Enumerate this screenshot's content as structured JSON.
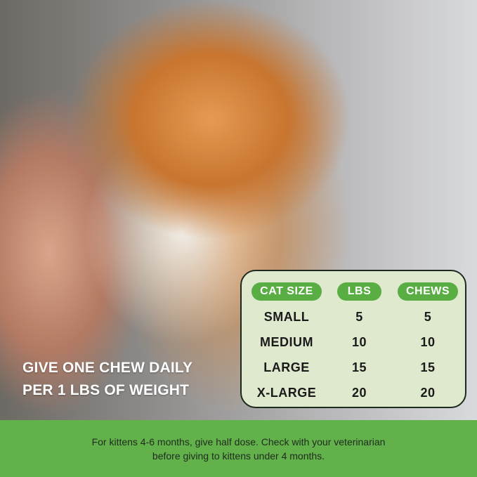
{
  "headline": {
    "line1": "GIVE ONE CHEW DAILY",
    "line2": "PER 1 LBS OF WEIGHT"
  },
  "table": {
    "headers": [
      "CAT SIZE",
      "LBS",
      "CHEWS"
    ],
    "rows": [
      [
        "SMALL",
        "5",
        "5"
      ],
      [
        "MEDIUM",
        "10",
        "10"
      ],
      [
        "LARGE",
        "15",
        "15"
      ],
      [
        "X-LARGE",
        "20",
        "20"
      ]
    ]
  },
  "footer": {
    "line1": "For kittens 4-6 months, give half dose. Check with your veterinarian",
    "line2": "before giving to kittens under 4 months."
  },
  "colors": {
    "accent": "#62b14a",
    "pill": "#58ad43",
    "table_bg": "#dfe9cd"
  }
}
